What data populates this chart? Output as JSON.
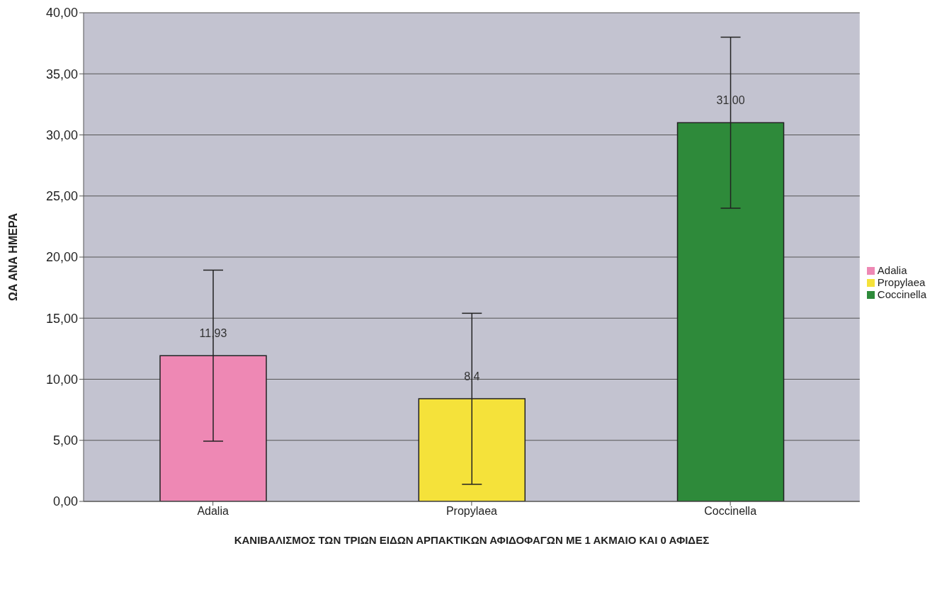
{
  "chart_data": {
    "type": "bar",
    "xlabel": "ΚΑΝΙΒΑΛΙΣΜΟΣ ΤΩΝ ΤΡΙΩΝ ΕΙΔΩΝ ΑΡΠΑΚΤΙΚΩΝ ΑΦΙΔΟΦΑΓΩΝ ΜΕ 1 ΑΚΜΑΙΟ ΚΑΙ 0 ΑΦΙΔΕΣ",
    "ylabel": "ΩΑ ΑΝΑ ΗΜΕΡΑ",
    "categories": [
      "Adalia",
      "Propylaea",
      "Coccinella"
    ],
    "stacked": true,
    "series": [
      {
        "name": "Adalia",
        "color": "#ee88b4",
        "values": [
          11.93,
          null,
          null
        ],
        "errors": [
          7,
          null,
          null
        ],
        "value_labels": [
          "11,93",
          null,
          null
        ]
      },
      {
        "name": "Propylaea",
        "color": "#f5e23a",
        "values": [
          null,
          8.4,
          null
        ],
        "errors": [
          null,
          7,
          null
        ],
        "value_labels": [
          null,
          "8,4",
          null
        ]
      },
      {
        "name": "Coccinella",
        "color": "#2e8a3a",
        "values": [
          null,
          null,
          31.0
        ],
        "errors": [
          null,
          null,
          7
        ],
        "value_labels": [
          null,
          null,
          "31,00"
        ]
      }
    ],
    "ylim": [
      0,
      40
    ],
    "yticks": [
      {
        "value": 0,
        "label": "0,00"
      },
      {
        "value": 5,
        "label": "5,00"
      },
      {
        "value": 10,
        "label": "10,00"
      },
      {
        "value": 15,
        "label": "15,00"
      },
      {
        "value": 20,
        "label": "20,00"
      },
      {
        "value": 25,
        "label": "25,00"
      },
      {
        "value": 30,
        "label": "30,00"
      },
      {
        "value": 35,
        "label": "35,00"
      },
      {
        "value": 40,
        "label": "40,00"
      }
    ],
    "grid": "y",
    "legend": "right"
  }
}
